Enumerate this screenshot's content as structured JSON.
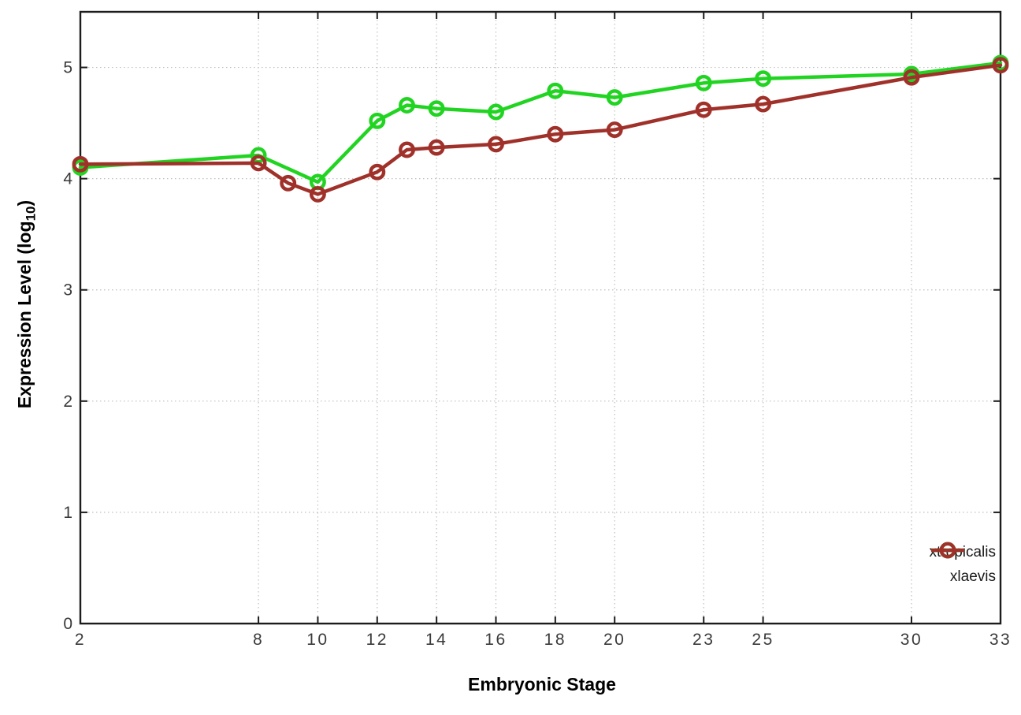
{
  "figure": {
    "background": "#ffffff"
  },
  "chart_data": {
    "type": "line",
    "title": "",
    "xlabel": "Embryonic Stage",
    "ylabel": "Expression Level (log10)",
    "ylabel_parts": {
      "main": "Expression Level (log",
      "sub": "10",
      "close": ")"
    },
    "xlim": [
      2,
      33
    ],
    "ylim": [
      0,
      5.5
    ],
    "x_tick_values": [
      2,
      8,
      10,
      12,
      14,
      16,
      18,
      20,
      23,
      25,
      30,
      33
    ],
    "x_tick_labels": [
      "2",
      "8",
      "10",
      "12",
      "14",
      "16",
      "18",
      "20",
      "23",
      "25",
      "30",
      "33"
    ],
    "y_tick_values": [
      0,
      1,
      2,
      3,
      4,
      5
    ],
    "y_tick_labels": [
      "0",
      "1",
      "2",
      "3",
      "4",
      "5"
    ],
    "grid": true,
    "grid_style": "dotted",
    "grid_color": "#bfbfbf",
    "axis_color": "#1c1c1c",
    "tick_label_color": "#3a3a3a",
    "marker": "open-circle",
    "legend": {
      "position": "inside-bottom-right",
      "entries": [
        "xtropicalis",
        "xlaevis"
      ]
    },
    "series": [
      {
        "name": "xtropicalis",
        "color": "#22d422",
        "x": [
          2,
          8,
          10,
          12,
          13,
          14,
          16,
          18,
          20,
          23,
          25,
          30,
          33
        ],
        "y": [
          4.1,
          4.21,
          3.97,
          4.52,
          4.66,
          4.63,
          4.6,
          4.79,
          4.73,
          4.86,
          4.9,
          4.94,
          5.04
        ]
      },
      {
        "name": "xlaevis",
        "color": "#a0312a",
        "x": [
          2,
          8,
          9,
          10,
          12,
          13,
          14,
          16,
          18,
          20,
          23,
          25,
          30,
          33
        ],
        "y": [
          4.13,
          4.14,
          3.96,
          3.86,
          4.06,
          4.26,
          4.28,
          4.31,
          4.4,
          4.44,
          4.62,
          4.67,
          4.91,
          5.02
        ]
      }
    ]
  }
}
